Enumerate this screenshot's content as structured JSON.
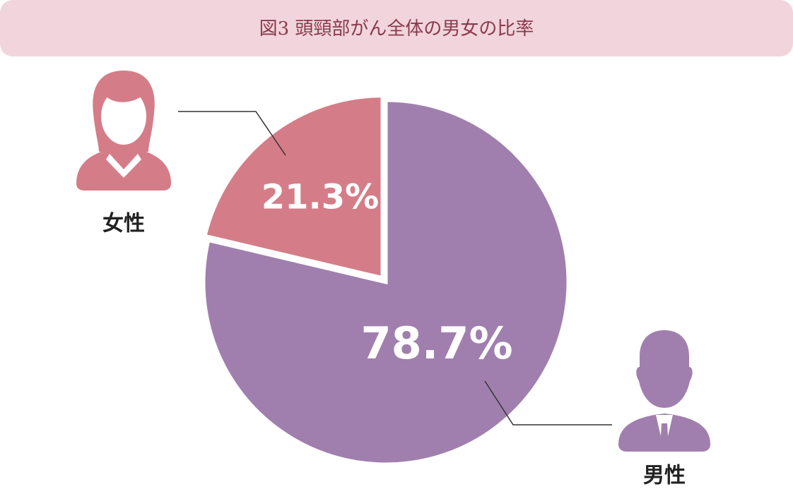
{
  "chart_data": {
    "type": "pie",
    "title": "図3 頭頸部がん全体の男女の比率",
    "categories": [
      "男性",
      "女性"
    ],
    "values": [
      78.7,
      21.3
    ],
    "value_labels": [
      "78.7%",
      "21.3%"
    ],
    "colors": [
      "#a07fae",
      "#d47d88"
    ]
  }
}
